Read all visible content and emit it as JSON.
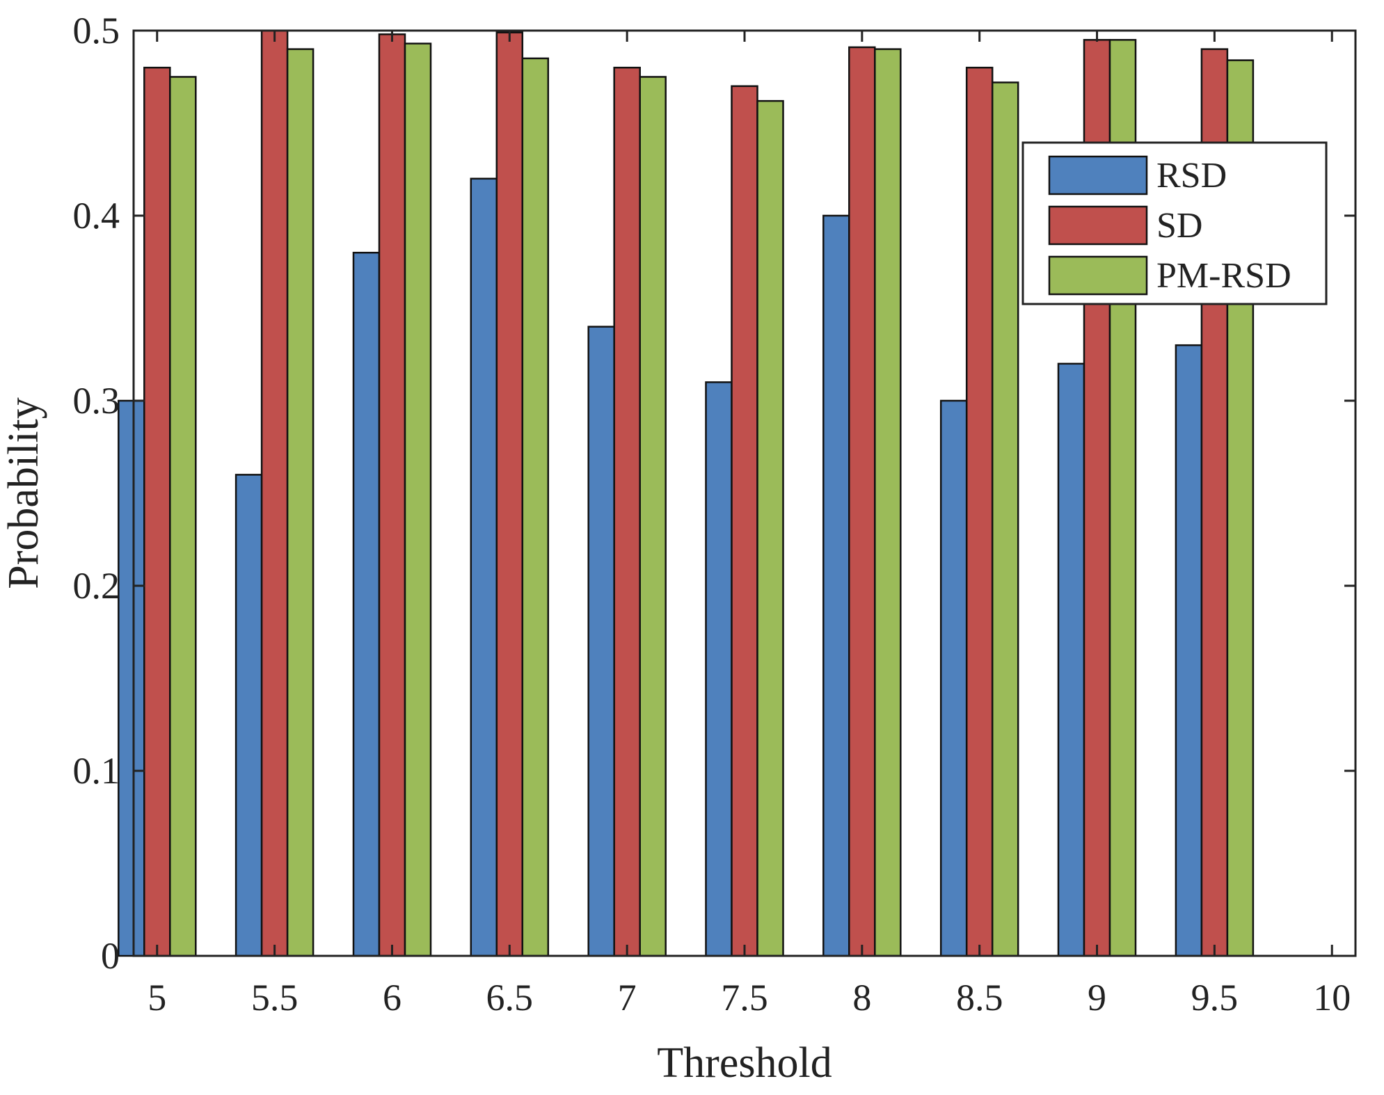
{
  "chart_data": {
    "type": "bar",
    "title": "",
    "xlabel": "Threshold",
    "ylabel": "Probability",
    "categories": [
      "5",
      "5.5",
      "6",
      "6.5",
      "7",
      "7.5",
      "8",
      "8.5",
      "9",
      "9.5"
    ],
    "x_values": [
      5,
      5.5,
      6,
      6.5,
      7,
      7.5,
      8,
      8.5,
      9,
      9.5
    ],
    "xlim": [
      4.9,
      10.1
    ],
    "xticks": [
      5,
      5.5,
      6,
      6.5,
      7,
      7.5,
      8,
      8.5,
      9,
      9.5,
      10
    ],
    "xtick_labels": [
      "5",
      "5.5",
      "6",
      "6.5",
      "7",
      "7.5",
      "8",
      "8.5",
      "9",
      "9.5",
      "10"
    ],
    "ylim": [
      0,
      0.5
    ],
    "yticks": [
      0,
      0.1,
      0.2,
      0.3,
      0.4,
      0.5
    ],
    "ytick_labels": [
      "0",
      "0.1",
      "0.2",
      "0.3",
      "0.4",
      "0.5"
    ],
    "grid": false,
    "legend_position": "top-right",
    "series": [
      {
        "name": "RSD",
        "color": "#4f81bd",
        "values": [
          0.3,
          0.26,
          0.38,
          0.42,
          0.34,
          0.31,
          0.4,
          0.3,
          0.32,
          0.33
        ]
      },
      {
        "name": "SD",
        "color": "#c0504d",
        "values": [
          0.48,
          0.5,
          0.498,
          0.499,
          0.48,
          0.47,
          0.491,
          0.48,
          0.495,
          0.49
        ]
      },
      {
        "name": "PM-RSD",
        "color": "#9bbb59",
        "values": [
          0.475,
          0.49,
          0.493,
          0.485,
          0.475,
          0.462,
          0.49,
          0.472,
          0.495,
          0.484
        ]
      }
    ]
  }
}
